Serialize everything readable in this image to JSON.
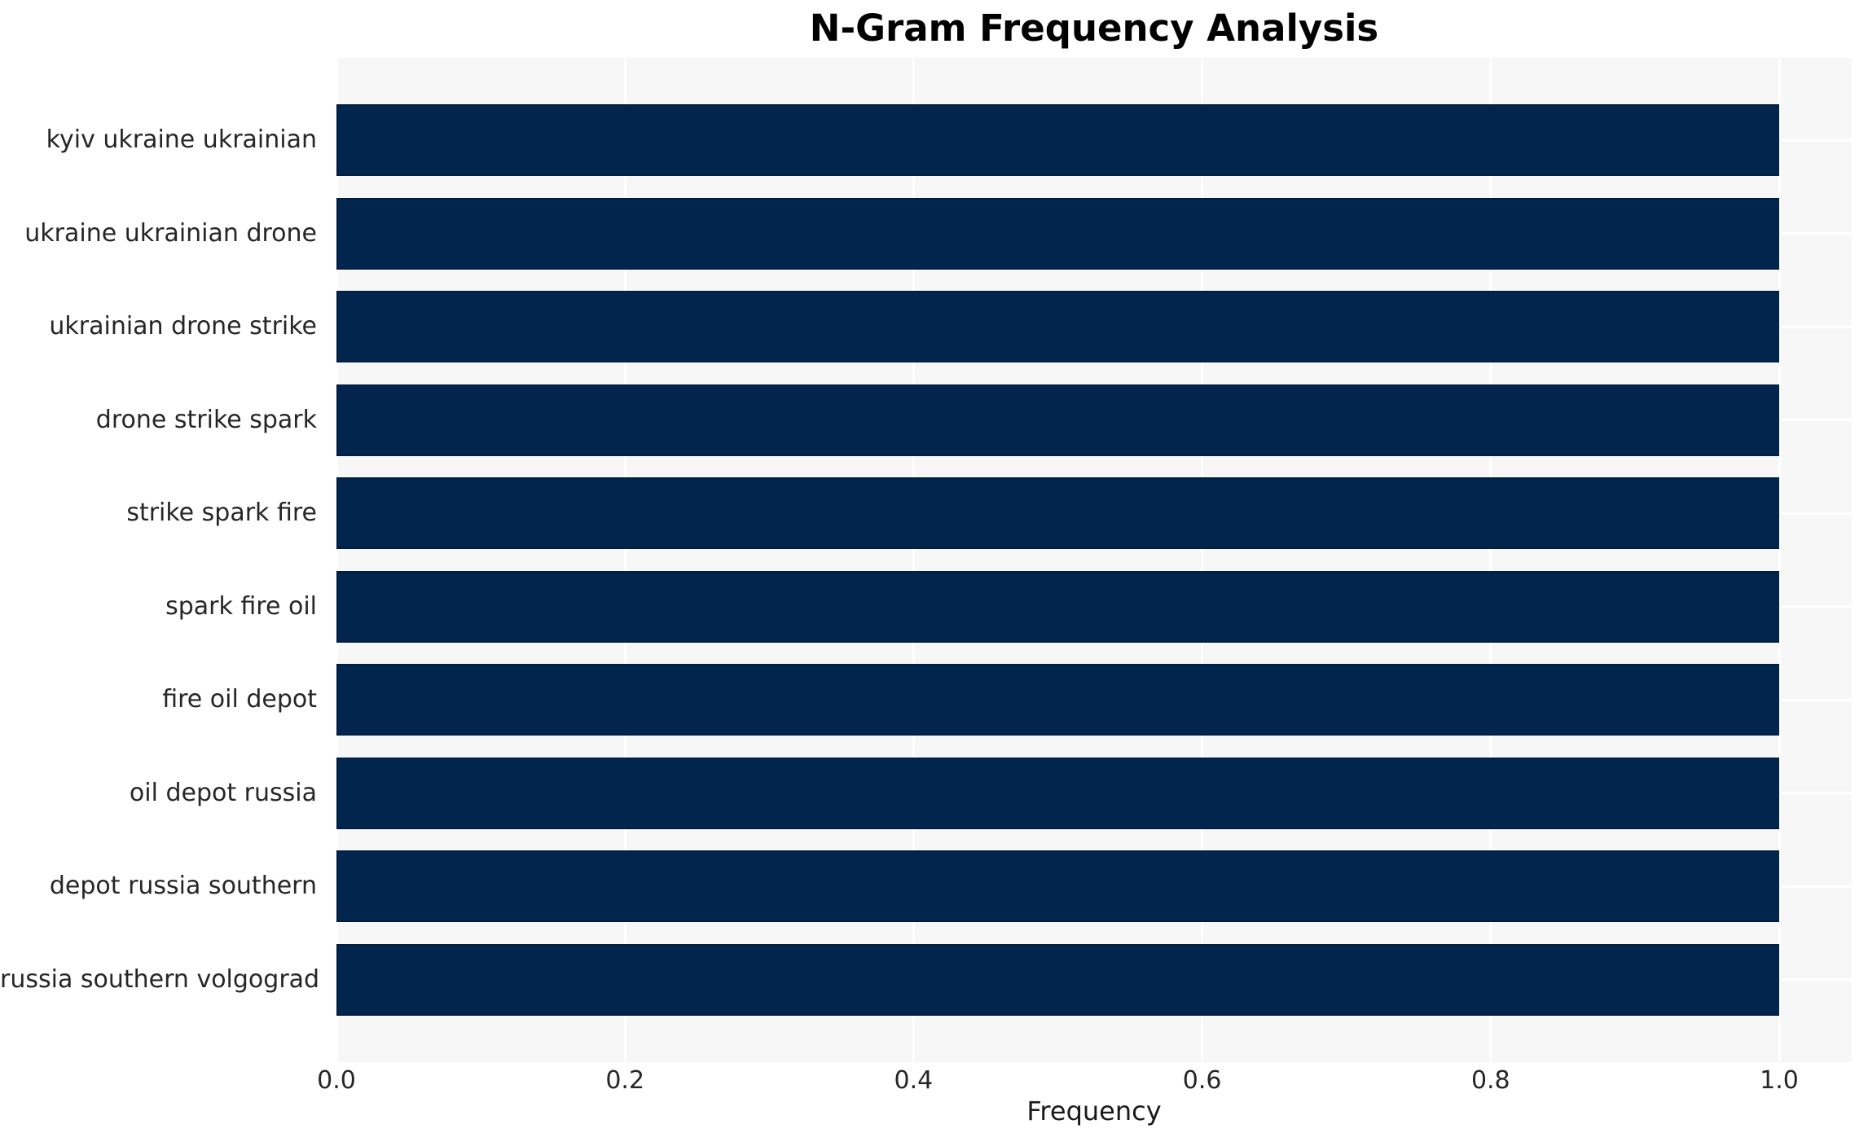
{
  "chart_data": {
    "type": "bar",
    "orientation": "horizontal",
    "title": "N-Gram Frequency Analysis",
    "xlabel": "Frequency",
    "ylabel": "",
    "categories": [
      "kyiv ukraine ukrainian",
      "ukraine ukrainian drone",
      "ukrainian drone strike",
      "drone strike spark",
      "strike spark fire",
      "spark fire oil",
      "fire oil depot",
      "oil depot russia",
      "depot russia southern",
      "russia southern volgograd"
    ],
    "values": [
      1.0,
      1.0,
      1.0,
      1.0,
      1.0,
      1.0,
      1.0,
      1.0,
      1.0,
      1.0
    ],
    "xlim": [
      0,
      1.05
    ],
    "xticks": [
      0.0,
      0.2,
      0.4,
      0.6,
      0.8,
      1.0
    ],
    "xtick_labels": [
      "0.0",
      "0.2",
      "0.4",
      "0.6",
      "0.8",
      "1.0"
    ],
    "grid": true,
    "legend": false,
    "colors": {
      "bar": "#02254e",
      "bar_edge": "#021c3e",
      "plot_background": "#f7f7f8",
      "gridline": "#ffffff",
      "figure_background": "#ffffff",
      "tick_text": "#262626",
      "title_text": "#000000"
    }
  }
}
